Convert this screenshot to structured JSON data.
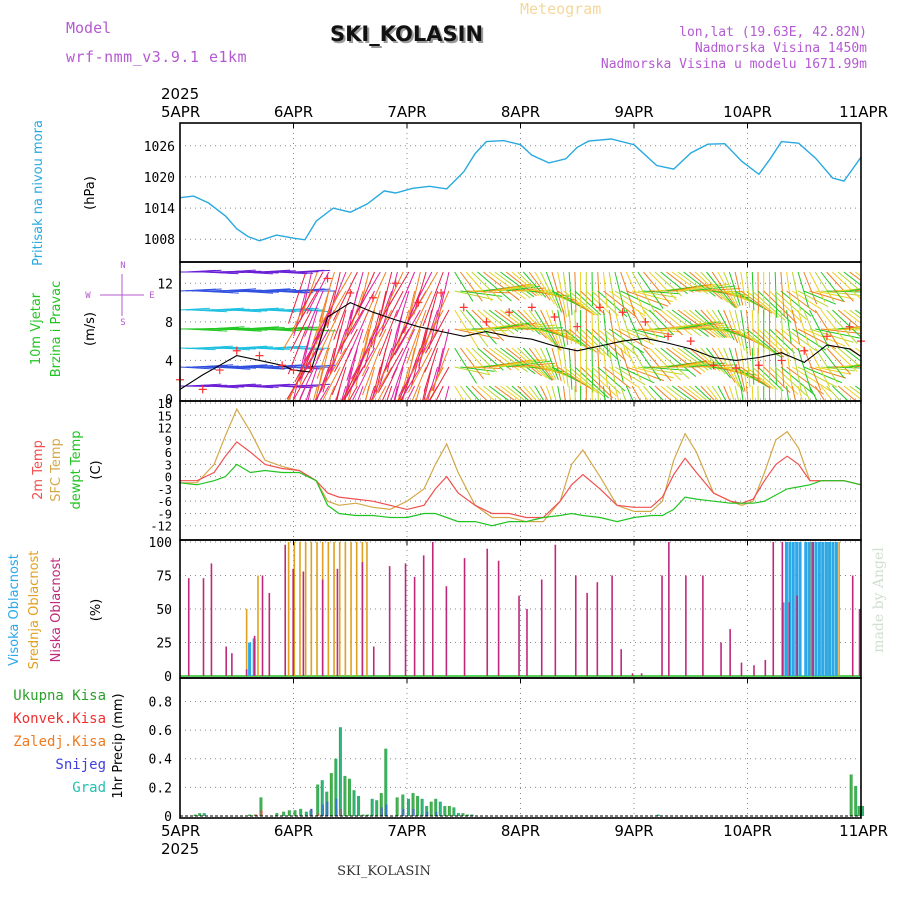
{
  "header": {
    "model_label": "Model",
    "model_name": "wrf-nmm_v3.9.1 e1km",
    "title": "SKI_KOLASIN",
    "meteogram_label": "Meteogram",
    "coords": "lon,lat (19.63E, 42.82N)",
    "elevation": "Nadmorska Visina 1450m",
    "model_elevation": "Nadmorska Visina u modelu 1671.99m",
    "year": "2025",
    "footer_title": "SKI_KOLASIN",
    "credit": "made by Angel"
  },
  "colors": {
    "pressure": "#29a9e0",
    "temp2m": "#f05050",
    "sfc_temp": "#d4a84a",
    "dewpt": "#22c422",
    "high_cloud": "#2aa8e8",
    "mid_cloud": "#e0a020",
    "low_cloud": "#c0287a",
    "total_precip": "#2ca02c",
    "conv_precip": "#ee3030",
    "freezing_precip": "#f07a20",
    "snow": "#4040dd",
    "hail": "#22c0b0",
    "wind_speed": "#000000",
    "gust_marker": "#ff3030"
  },
  "chart_data": [
    {
      "type": "line",
      "name": "pressure",
      "labels": [
        "Pritisak na nivou mora",
        "(hPa)"
      ],
      "x_ticks": [
        "5APR",
        "6APR",
        "7APR",
        "8APR",
        "9APR",
        "10APR",
        "11APR"
      ],
      "y_ticks": [
        1008,
        1014,
        1020,
        1026
      ],
      "ylim": [
        1004,
        1030
      ],
      "grid": true,
      "series": [
        {
          "x": [
            0,
            0.12,
            0.25,
            0.4,
            0.5,
            0.6,
            0.7,
            0.85,
            1.0,
            1.1,
            1.2,
            1.35,
            1.5,
            1.65,
            1.8,
            1.9,
            2.05,
            2.2,
            2.35,
            2.5,
            2.6,
            2.7,
            2.85,
            3.0,
            3.1,
            3.25,
            3.4,
            3.5,
            3.6,
            3.8,
            4.0,
            4.2,
            4.35,
            4.5,
            4.65,
            4.8,
            4.95,
            5.1,
            5.2,
            5.3,
            5.45,
            5.6,
            5.75,
            5.85,
            6.0
          ],
          "y": [
            1016,
            1016.3,
            1015,
            1012.5,
            1010,
            1008.5,
            1007.7,
            1008.8,
            1008.2,
            1007.9,
            1011.5,
            1014,
            1013.2,
            1014.8,
            1017.3,
            1016.9,
            1017.8,
            1018.2,
            1017.7,
            1021,
            1024.5,
            1026.8,
            1027,
            1026.2,
            1024.2,
            1022.7,
            1023.5,
            1025.7,
            1026.9,
            1027.3,
            1026.2,
            1022.2,
            1021.5,
            1024.6,
            1026.3,
            1026.4,
            1023,
            1020.5,
            1023.5,
            1026.8,
            1026.5,
            1023.6,
            1019.8,
            1019.2,
            1023.8
          ]
        }
      ]
    },
    {
      "type": "line",
      "name": "wind",
      "labels": [
        "10m Vjetar",
        "Brzina i Pravac",
        "(m/s)"
      ],
      "compass": [
        "N",
        "W",
        "E",
        "S"
      ],
      "y_ticks": [
        0,
        4,
        8,
        12
      ],
      "ylim": [
        0,
        14
      ],
      "grid": true,
      "series": [
        {
          "name": "wind speed",
          "x": [
            0,
            0.2,
            0.35,
            0.5,
            0.7,
            0.9,
            1.0,
            1.15,
            1.3,
            1.5,
            1.7,
            1.9,
            2.1,
            2.3,
            2.5,
            2.7,
            2.9,
            3.1,
            3.3,
            3.5,
            3.7,
            3.9,
            4.1,
            4.3,
            4.5,
            4.7,
            4.9,
            5.1,
            5.3,
            5.5,
            5.7,
            5.9,
            6.0
          ],
          "y": [
            1,
            2.5,
            3.5,
            4.5,
            4,
            3.5,
            3,
            2.8,
            8.5,
            10,
            9,
            8.2,
            7.5,
            7,
            6.5,
            7,
            6.5,
            6.2,
            5.5,
            5,
            5.5,
            6,
            6.3,
            5.8,
            5.2,
            4.3,
            4,
            4.3,
            4.8,
            3.8,
            5.6,
            5.2,
            4.4
          ]
        },
        {
          "name": "gusts",
          "x": [
            0,
            0.2,
            0.35,
            0.5,
            0.7,
            0.9,
            1.0,
            1.15,
            1.3,
            1.5,
            1.7,
            1.9,
            2.1,
            2.3,
            2.5,
            2.7,
            2.9,
            3.1,
            3.3,
            3.5,
            3.7,
            3.9,
            4.1,
            4.3,
            4.5,
            4.7,
            4.9,
            5.1,
            5.3,
            5.5,
            5.7,
            5.9,
            6.0
          ],
          "y": [
            2,
            1,
            3,
            5,
            4.5,
            3.5,
            3,
            3.2,
            12.5,
            11,
            10.5,
            12,
            10,
            11,
            9.5,
            8,
            9,
            9.5,
            8.5,
            7.5,
            9.5,
            9,
            8,
            6.5,
            6,
            3.5,
            3.2,
            3.5,
            4,
            5,
            6.5,
            7.5,
            6
          ]
        }
      ],
      "arrow_colors": [
        "#6a1fd6",
        "#3050e0",
        "#1ec0e0",
        "#22c822",
        "#b8d830",
        "#f0d020",
        "#f08020",
        "#e82040",
        "#e020a0"
      ]
    },
    {
      "type": "line",
      "name": "temperature",
      "labels": [
        "2m Temp",
        "SFC Temp",
        "dewpt Temp",
        "(C)"
      ],
      "y_ticks": [
        -12,
        -9,
        -6,
        -3,
        0,
        3,
        6,
        9,
        12,
        15,
        18
      ],
      "ylim": [
        -15,
        18
      ],
      "grid": true,
      "series": [
        {
          "name": "2m Temp",
          "x": [
            0,
            0.15,
            0.3,
            0.4,
            0.5,
            0.62,
            0.75,
            0.9,
            1.05,
            1.2,
            1.3,
            1.4,
            1.55,
            1.7,
            1.85,
            2.0,
            2.15,
            2.25,
            2.35,
            2.45,
            2.6,
            2.75,
            2.9,
            3.05,
            3.2,
            3.35,
            3.45,
            3.55,
            3.7,
            3.85,
            4.0,
            4.15,
            4.25,
            4.35,
            4.45,
            4.55,
            4.7,
            4.85,
            4.95,
            5.05,
            5.15,
            5.25,
            5.35,
            5.45,
            5.55,
            5.65,
            5.75,
            5.85,
            6.0
          ],
          "y": [
            -1,
            -1,
            1,
            5,
            8.5,
            6,
            3,
            2,
            1.5,
            -1,
            -4,
            -5,
            -5.5,
            -6,
            -7,
            -8,
            -7,
            -3,
            0,
            -4,
            -7,
            -9,
            -9,
            -10,
            -10,
            -6,
            -2,
            0.5,
            -3,
            -7,
            -7.5,
            -7.5,
            -5,
            0.5,
            4.5,
            1,
            -4,
            -6,
            -6.5,
            -5.5,
            -1,
            3,
            5,
            3,
            -1,
            -1,
            -1,
            -1,
            -2
          ]
        },
        {
          "name": "SFC Temp",
          "x": [
            0,
            0.15,
            0.3,
            0.4,
            0.5,
            0.62,
            0.75,
            0.9,
            1.05,
            1.2,
            1.3,
            1.4,
            1.55,
            1.7,
            1.85,
            2.0,
            2.15,
            2.25,
            2.35,
            2.45,
            2.6,
            2.75,
            2.9,
            3.05,
            3.2,
            3.35,
            3.45,
            3.55,
            3.7,
            3.85,
            4.0,
            4.15,
            4.25,
            4.35,
            4.45,
            4.55,
            4.7,
            4.85,
            4.95,
            5.05,
            5.15,
            5.25,
            5.35,
            5.45,
            5.55,
            5.65,
            5.75,
            5.85,
            6.0
          ],
          "y": [
            -1.5,
            -1.5,
            3,
            10,
            16.5,
            11,
            4,
            2.5,
            1.5,
            -1,
            -6,
            -7,
            -6.5,
            -7.5,
            -8,
            -6,
            -3,
            3,
            8,
            1,
            -7,
            -10,
            -10,
            -11,
            -11,
            -6,
            3,
            6.5,
            0,
            -7,
            -8.5,
            -8.5,
            -6,
            4,
            10.5,
            6,
            -4,
            -6,
            -7,
            -6,
            1,
            9,
            11,
            7,
            -1,
            -1,
            -1,
            -1,
            -2
          ]
        },
        {
          "name": "dewpt Temp",
          "x": [
            0,
            0.15,
            0.3,
            0.4,
            0.5,
            0.62,
            0.75,
            0.9,
            1.05,
            1.2,
            1.3,
            1.4,
            1.55,
            1.7,
            1.85,
            2.0,
            2.15,
            2.25,
            2.35,
            2.45,
            2.6,
            2.75,
            2.9,
            3.05,
            3.2,
            3.35,
            3.45,
            3.55,
            3.7,
            3.85,
            4.0,
            4.15,
            4.25,
            4.35,
            4.45,
            4.55,
            4.7,
            4.85,
            4.95,
            5.05,
            5.15,
            5.25,
            5.35,
            5.45,
            5.55,
            5.65,
            5.75,
            5.85,
            6.0
          ],
          "y": [
            -1.5,
            -2,
            -1,
            0,
            3,
            1,
            1.5,
            1,
            1,
            -1,
            -7,
            -9,
            -9.5,
            -9.5,
            -10,
            -10,
            -9,
            -9,
            -10,
            -11,
            -11,
            -12,
            -11,
            -11,
            -10,
            -9.5,
            -9,
            -9.5,
            -10,
            -11,
            -10,
            -9.5,
            -9.5,
            -8,
            -5,
            -5.5,
            -6,
            -6.5,
            -6.5,
            -6.5,
            -6,
            -4.5,
            -3,
            -2.5,
            -2,
            -1,
            -1,
            -1,
            -2
          ]
        }
      ]
    },
    {
      "type": "bar",
      "name": "cloud",
      "labels": [
        "Visoka Oblacnost",
        "Srednja Oblacnost",
        "Niska Oblacnost",
        "(%)"
      ],
      "y_ticks": [
        0,
        25,
        50,
        75,
        100
      ],
      "ylim": [
        0,
        100
      ],
      "grid": true,
      "series": [
        {
          "name": "Niska Oblacnost",
          "x": [
            0.07,
            0.2,
            0.27,
            0.4,
            0.45,
            0.58,
            0.65,
            0.72,
            0.78,
            0.92,
            0.99,
            1.08,
            1.25,
            1.38,
            1.6,
            1.7,
            1.84,
            1.98,
            2.06,
            2.14,
            2.22,
            2.34,
            2.5,
            2.7,
            2.8,
            2.98,
            3.05,
            3.18,
            3.3,
            3.48,
            3.58,
            3.67,
            3.8,
            3.88,
            3.98,
            4.06,
            4.24,
            4.3,
            4.45,
            4.6,
            4.76,
            4.84,
            4.94,
            5.05,
            5.15,
            5.22,
            5.3,
            5.36,
            5.43,
            5.57,
            5.92,
            5.98
          ],
          "y": [
            73,
            73,
            84,
            22,
            17,
            5,
            30,
            75,
            62,
            98,
            80,
            78,
            72,
            80,
            85,
            22,
            82,
            84,
            74,
            90,
            100,
            67,
            88,
            95,
            86,
            60,
            50,
            72,
            98,
            75,
            62,
            70,
            75,
            20,
            2,
            2,
            75,
            100,
            75,
            75,
            25,
            35,
            10,
            8,
            12,
            100,
            100,
            55,
            60,
            100,
            75,
            50
          ]
        },
        {
          "name": "Srednja Oblacnost",
          "x": [
            0.58,
            0.68,
            0.95,
            1.0,
            1.05,
            1.1,
            1.15,
            1.2,
            1.25,
            1.3,
            1.35,
            1.4,
            1.45,
            1.5,
            1.55,
            1.6,
            1.64,
            5.55,
            5.6,
            5.65,
            5.7,
            5.75,
            5.8
          ],
          "y": [
            50,
            75,
            100,
            100,
            100,
            100,
            100,
            100,
            100,
            100,
            100,
            100,
            100,
            100,
            100,
            100,
            100,
            100,
            100,
            100,
            100,
            100,
            100
          ]
        },
        {
          "name": "Visoka Oblacnost",
          "x": [
            0.6,
            0.64,
            5.3,
            5.33,
            5.36,
            5.39,
            5.42,
            5.45,
            5.5,
            5.53,
            5.56,
            5.59,
            5.62,
            5.65,
            5.68,
            5.71,
            5.74,
            5.77
          ],
          "y": [
            25,
            28,
            55,
            100,
            100,
            100,
            100,
            100,
            100,
            100,
            100,
            100,
            100,
            100,
            100,
            100,
            100,
            100
          ]
        }
      ]
    },
    {
      "type": "bar",
      "name": "precipitation",
      "labels": [
        "Ukupna Kisa",
        "Konvek.Kisa",
        "Zaledj.Kisa",
        "Snijeg",
        "Grad",
        "1hr Precip (mm)"
      ],
      "y_ticks": [
        0,
        0.2,
        0.4,
        0.6,
        0.8
      ],
      "ylim": [
        0,
        0.95
      ],
      "grid": true,
      "series": [
        {
          "name": "Ukupna Kisa",
          "x": [
            0.12,
            0.16,
            0.2,
            0.6,
            0.65,
            0.7,
            0.84,
            0.9,
            0.95,
            1.0,
            1.05,
            1.1,
            1.14,
            1.2,
            1.24,
            1.28,
            1.32,
            1.36,
            1.4,
            1.44,
            1.48,
            1.52,
            1.56,
            1.6,
            1.64,
            1.68,
            1.72,
            1.76,
            1.8,
            1.9,
            1.95,
            2.0,
            2.04,
            2.08,
            2.12,
            2.16,
            2.2,
            2.24,
            2.28,
            2.32,
            2.36,
            2.4,
            2.44,
            2.48,
            2.52,
            2.56,
            4.2,
            5.9,
            5.94,
            5.97,
            6.0
          ],
          "y": [
            0.01,
            0.02,
            0.02,
            0.01,
            0.01,
            0.13,
            0.02,
            0.03,
            0.04,
            0.04,
            0.05,
            0.03,
            0.04,
            0.22,
            0.25,
            0.17,
            0.3,
            0.4,
            0.62,
            0.28,
            0.26,
            0.18,
            0.14,
            0.01,
            0.01,
            0.12,
            0.11,
            0.16,
            0.47,
            0.13,
            0.15,
            0.12,
            0.16,
            0.14,
            0.12,
            0.07,
            0.1,
            0.12,
            0.1,
            0.07,
            0.07,
            0.06,
            0.02,
            0.02,
            0.01,
            0.01,
            0.01,
            0.29,
            0.21,
            0.07,
            0.07
          ]
        },
        {
          "name": "Konvek.Kisa",
          "x": [
            0.65,
            0.7,
            1.2,
            1.36,
            1.4
          ],
          "y": [
            0.01,
            0.04,
            0.02,
            0.05,
            0.05
          ]
        },
        {
          "name": "Snijeg",
          "x": [
            1.14,
            1.24,
            1.28,
            1.36,
            1.76,
            1.8,
            1.95,
            2.04,
            2.16,
            2.24
          ],
          "y": [
            0.05,
            0.08,
            0.1,
            0.12,
            0.06,
            0.08,
            0.05,
            0.05,
            0.03,
            0.03
          ]
        }
      ]
    }
  ]
}
